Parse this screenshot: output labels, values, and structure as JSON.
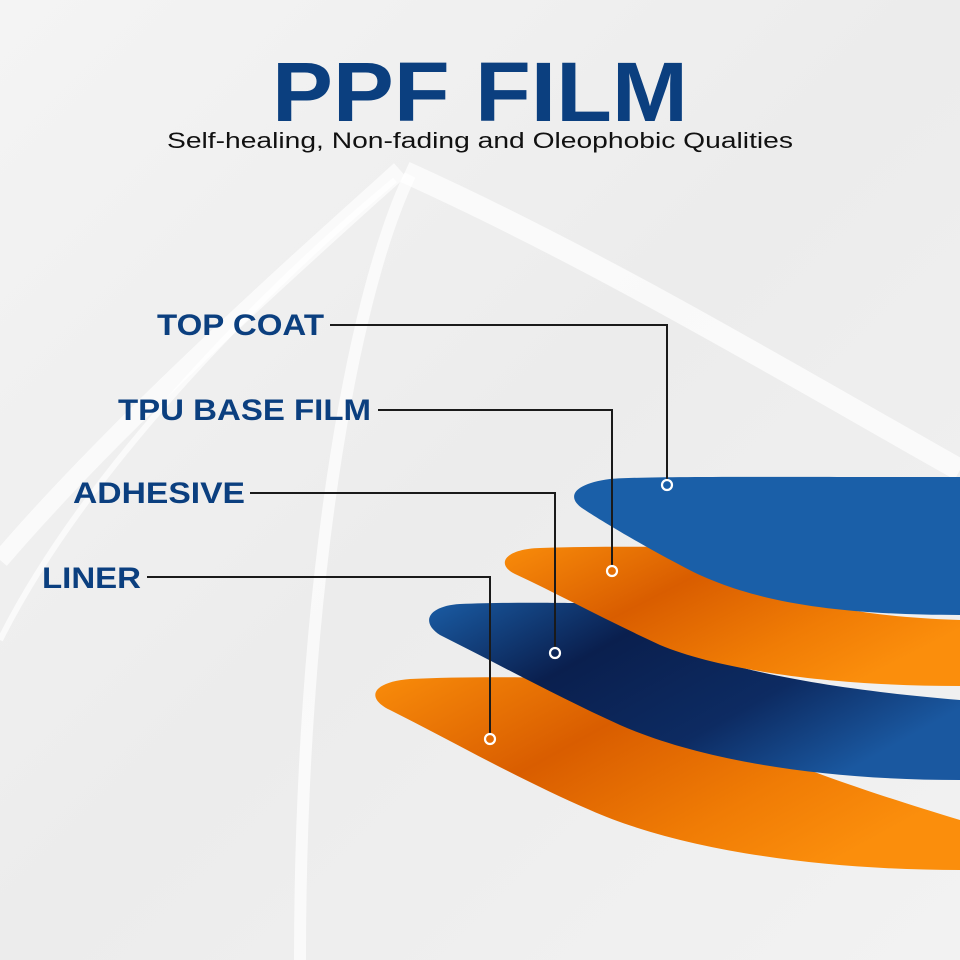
{
  "title": "PPF FILM",
  "subtitle": "Self-healing, Non-fading and Oleophobic Qualities",
  "colors": {
    "title": "#0b3f7f",
    "blue_layer": "#1a5fa8",
    "blue_dark": "#0a1f4e",
    "orange_layer": "#f78a0a",
    "orange_dark": "#d85c00",
    "background": "#efefef"
  },
  "layers": [
    {
      "label": "TOP COAT"
    },
    {
      "label": "TPU BASE FILM"
    },
    {
      "label": "ADHESIVE"
    },
    {
      "label": "LINER"
    }
  ]
}
